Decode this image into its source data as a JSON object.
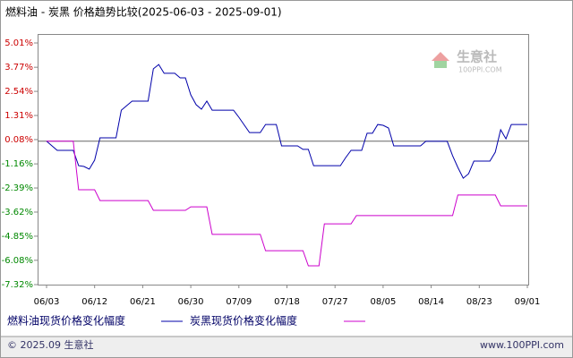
{
  "chart_data": {
    "type": "line",
    "title": "燃料油 - 炭黑 价格趋势比较(2025-06-03 - 2025-09-01)",
    "ylim": [
      -7.32,
      5.01
    ],
    "yticks": [
      {
        "value": 5.01,
        "label": "5.01%"
      },
      {
        "value": 3.77,
        "label": "3.77%"
      },
      {
        "value": 2.54,
        "label": "2.54%"
      },
      {
        "value": 1.31,
        "label": "1.31%"
      },
      {
        "value": 0.08,
        "label": "0.08%"
      },
      {
        "value": -1.16,
        "label": "-1.16%"
      },
      {
        "value": -2.39,
        "label": "-2.39%"
      },
      {
        "value": -3.62,
        "label": "-3.62%"
      },
      {
        "value": -4.85,
        "label": "-4.85%"
      },
      {
        "value": -6.08,
        "label": "-6.08%"
      },
      {
        "value": -7.32,
        "label": "-7.32%"
      }
    ],
    "xticks": [
      "06/03",
      "06/12",
      "06/21",
      "06/30",
      "07/09",
      "07/18",
      "07/27",
      "08/05",
      "08/14",
      "08/23",
      "09/01"
    ],
    "series": [
      {
        "name": "燃料油现货价格变化幅度",
        "color": "#0000aa",
        "x": [
          "06/03",
          "06/05",
          "06/08",
          "06/09",
          "06/10",
          "06/11",
          "06/12",
          "06/13",
          "06/16",
          "06/17",
          "06/19",
          "06/22",
          "06/23",
          "06/24",
          "06/25",
          "06/27",
          "06/28",
          "06/29",
          "06/30",
          "07/01",
          "07/02",
          "07/03",
          "07/04",
          "07/08",
          "07/09",
          "07/11",
          "07/13",
          "07/14",
          "07/16",
          "07/17",
          "07/20",
          "07/21",
          "07/22",
          "07/23",
          "07/28",
          "07/29",
          "07/30",
          "08/01",
          "08/02",
          "08/03",
          "08/04",
          "08/05",
          "08/06",
          "08/07",
          "08/12",
          "08/13",
          "08/17",
          "08/18",
          "08/19",
          "08/20",
          "08/21",
          "08/22",
          "08/25",
          "08/26",
          "08/27",
          "08/28",
          "08/29",
          "09/01"
        ],
        "values": [
          0,
          -0.47,
          -0.47,
          -1.25,
          -1.29,
          -1.43,
          -0.97,
          0.17,
          0.17,
          1.58,
          2.04,
          2.04,
          3.69,
          3.91,
          3.46,
          3.46,
          3.23,
          3.23,
          2.36,
          1.86,
          1.63,
          2.04,
          1.58,
          1.58,
          1.22,
          0.44,
          0.44,
          0.85,
          0.85,
          -0.24,
          -0.24,
          -0.42,
          -0.42,
          -1.25,
          -1.25,
          -0.84,
          -0.47,
          -0.47,
          0.4,
          0.4,
          0.85,
          0.81,
          0.67,
          -0.24,
          -0.24,
          -0.01,
          -0.01,
          -0.74,
          -1.34,
          -1.89,
          -1.66,
          -1.02,
          -1.02,
          -0.56,
          0.58,
          0.12,
          0.85,
          0.85
        ]
      },
      {
        "name": "炭黑现货价格变化幅度",
        "color": "#cc00cc",
        "x": [
          "06/03",
          "06/08",
          "06/09",
          "06/12",
          "06/13",
          "06/22",
          "06/23",
          "06/29",
          "06/30",
          "07/03",
          "07/04",
          "07/13",
          "07/14",
          "07/21",
          "07/22",
          "07/24",
          "07/25",
          "07/30",
          "07/31",
          "08/18",
          "08/19",
          "08/26",
          "08/27",
          "09/01"
        ],
        "values": [
          0,
          0,
          -2.48,
          -2.48,
          -3.03,
          -3.03,
          -3.53,
          -3.53,
          -3.35,
          -3.35,
          -4.76,
          -4.76,
          -5.59,
          -5.59,
          -6.36,
          -6.36,
          -4.22,
          -4.22,
          -3.8,
          -3.8,
          -2.75,
          -2.75,
          -3.3,
          -3.3
        ]
      }
    ],
    "watermark": {
      "name": "生意社",
      "url": "100PPI.COM"
    },
    "footer": {
      "left": "© 2025.09 生意社",
      "right": "www.100PPI.com"
    }
  }
}
